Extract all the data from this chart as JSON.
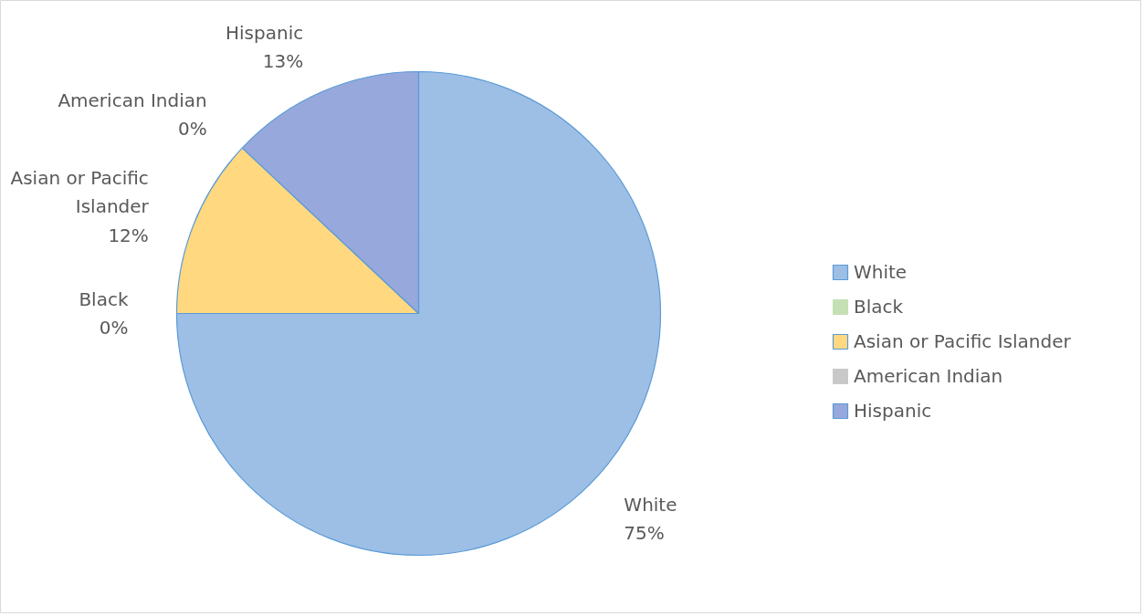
{
  "chart_data": {
    "type": "pie",
    "categories": [
      "White",
      "Black",
      "Asian or Pacific Islander",
      "American Indian",
      "Hispanic"
    ],
    "values": [
      75,
      0,
      12,
      0,
      13
    ],
    "colors": [
      "#9dbfe6",
      "#c5e0b4",
      "#ffd880",
      "#c9c9c9",
      "#97a8dc"
    ],
    "value_labels": [
      "75%",
      "0%",
      "12%",
      "0%",
      "13%"
    ],
    "legend": "right"
  }
}
